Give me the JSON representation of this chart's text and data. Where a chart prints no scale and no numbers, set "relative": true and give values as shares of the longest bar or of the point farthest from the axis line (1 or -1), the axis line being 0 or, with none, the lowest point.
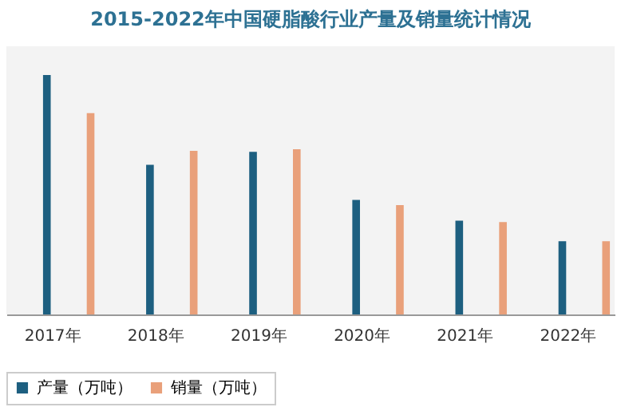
{
  "chart_data": {
    "type": "bar",
    "title": "2015-2022年中国硬脂酸行业产量及销量统计情况",
    "relative": true,
    "legend": "bottom",
    "categories": [
      "2017年",
      "2018年",
      "2019年",
      "2020年",
      "2021年",
      "2022年"
    ],
    "series": [
      {
        "name": "产量（万吨）",
        "color": "#1d5f80",
        "values": [
          1,
          0.625,
          0.679,
          0.478,
          0.392,
          0.306
        ]
      },
      {
        "name": "销量（万吨）",
        "color": "#e9a07a",
        "values": [
          0.841,
          0.683,
          0.69,
          0.457,
          0.386,
          0.306
        ]
      }
    ]
  }
}
